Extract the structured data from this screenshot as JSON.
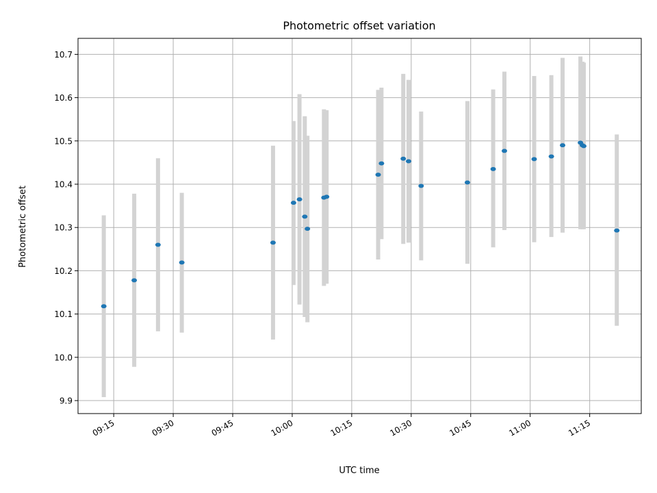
{
  "chart_data": {
    "type": "scatter",
    "title": "Photometric offset variation",
    "xlabel": "UTC time",
    "ylabel": "Photometric offset",
    "grid": true,
    "xlim": [
      "09:06",
      "11:28"
    ],
    "ylim": [
      9.87,
      10.737
    ],
    "x_ticks": [
      "09:15",
      "09:30",
      "09:45",
      "10:00",
      "10:15",
      "10:30",
      "10:45",
      "11:00",
      "11:15"
    ],
    "y_ticks": [
      "9.9",
      "10.0",
      "10.1",
      "10.2",
      "10.3",
      "10.4",
      "10.5",
      "10.6",
      "10.7"
    ],
    "colors": {
      "points": "#1f77b4",
      "errorbars": "#d3d3d3",
      "grid": "#b0b0b0"
    },
    "series": [
      {
        "points": [
          {
            "x": "09:12:30",
            "y": 10.118,
            "lo": 9.908,
            "hi": 10.328
          },
          {
            "x": "09:20:10",
            "y": 10.178,
            "lo": 9.978,
            "hi": 10.378
          },
          {
            "x": "09:26:10",
            "y": 10.26,
            "lo": 10.06,
            "hi": 10.46
          },
          {
            "x": "09:32:10",
            "y": 10.219,
            "lo": 10.057,
            "hi": 10.38
          },
          {
            "x": "09:55:10",
            "y": 10.265,
            "lo": 10.041,
            "hi": 10.489
          },
          {
            "x": "10:00:20",
            "y": 10.357,
            "lo": 10.167,
            "hi": 10.546
          },
          {
            "x": "10:01:50",
            "y": 10.365,
            "lo": 10.122,
            "hi": 10.608
          },
          {
            "x": "10:03:10",
            "y": 10.325,
            "lo": 10.093,
            "hi": 10.557
          },
          {
            "x": "10:03:50",
            "y": 10.297,
            "lo": 10.081,
            "hi": 10.512
          },
          {
            "x": "10:08:00",
            "y": 10.369,
            "lo": 10.165,
            "hi": 10.573
          },
          {
            "x": "10:08:40",
            "y": 10.371,
            "lo": 10.17,
            "hi": 10.571
          },
          {
            "x": "10:21:40",
            "y": 10.422,
            "lo": 10.226,
            "hi": 10.618
          },
          {
            "x": "10:22:30",
            "y": 10.448,
            "lo": 10.273,
            "hi": 10.623
          },
          {
            "x": "10:28:00",
            "y": 10.459,
            "lo": 10.262,
            "hi": 10.655
          },
          {
            "x": "10:29:20",
            "y": 10.453,
            "lo": 10.265,
            "hi": 10.641
          },
          {
            "x": "10:32:30",
            "y": 10.396,
            "lo": 10.224,
            "hi": 10.568
          },
          {
            "x": "10:44:10",
            "y": 10.404,
            "lo": 10.216,
            "hi": 10.592
          },
          {
            "x": "10:50:40",
            "y": 10.435,
            "lo": 10.254,
            "hi": 10.619
          },
          {
            "x": "10:53:30",
            "y": 10.477,
            "lo": 10.294,
            "hi": 10.66
          },
          {
            "x": "11:01:00",
            "y": 10.458,
            "lo": 10.266,
            "hi": 10.65
          },
          {
            "x": "11:05:20",
            "y": 10.464,
            "lo": 10.278,
            "hi": 10.652
          },
          {
            "x": "11:08:10",
            "y": 10.49,
            "lo": 10.288,
            "hi": 10.692
          },
          {
            "x": "11:12:40",
            "y": 10.496,
            "lo": 10.296,
            "hi": 10.695
          },
          {
            "x": "11:13:10",
            "y": 10.49,
            "lo": 10.296,
            "hi": 10.683
          },
          {
            "x": "11:13:30",
            "y": 10.488,
            "lo": 10.296,
            "hi": 10.681
          },
          {
            "x": "11:21:50",
            "y": 10.293,
            "lo": 10.073,
            "hi": 10.515
          }
        ]
      }
    ]
  }
}
